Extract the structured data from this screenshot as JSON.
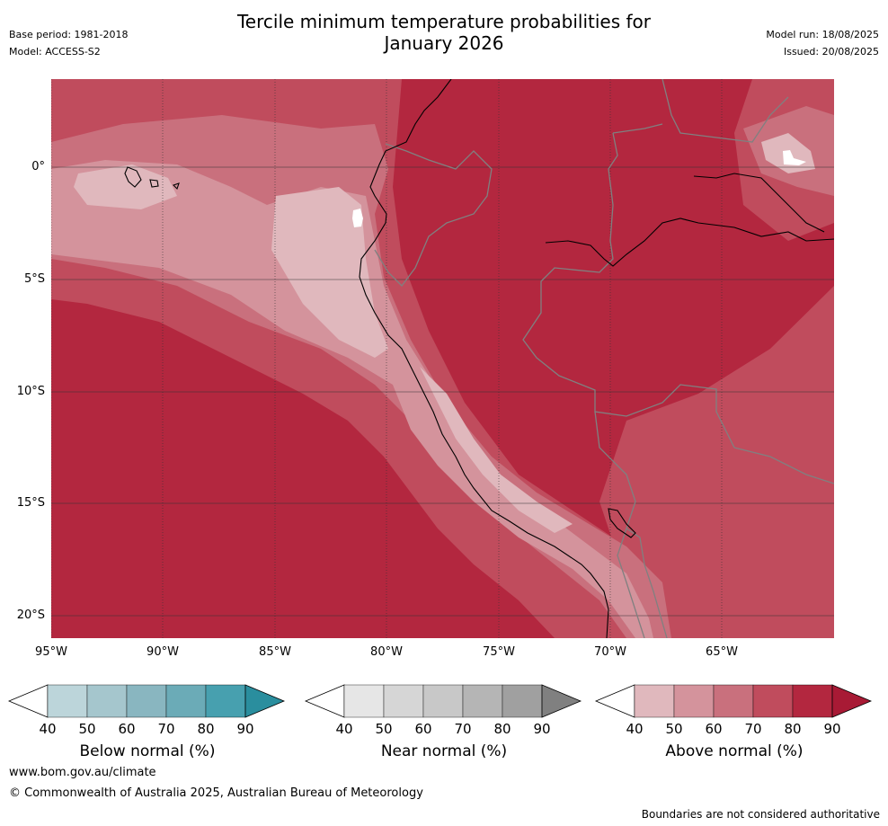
{
  "header": {
    "title_line1": "Tercile minimum temperature probabilities for",
    "title_line2": "January 2026",
    "base_period": "Base period: 1981-2018",
    "model": "Model: ACCESS-S2",
    "model_run": "Model run: 18/08/2025",
    "issued": "Issued: 20/08/2025"
  },
  "map": {
    "lat_labels": [
      "0°",
      "5°S",
      "10°S",
      "15°S",
      "20°S"
    ],
    "lon_labels": [
      "95°W",
      "90°W",
      "85°W",
      "80°W",
      "75°W",
      "70°W",
      "65°W"
    ],
    "colors": {
      "above_40": "#e0b8bd",
      "above_50": "#d4939c",
      "above_60": "#c9707d",
      "above_70": "#c04c5d",
      "above_80": "#b3273f",
      "above_90": "#a81a35",
      "coast": "#000000",
      "border": "#808080",
      "grid": "#333333"
    }
  },
  "legends": [
    {
      "title": "Below normal (%)",
      "ticks": [
        "40",
        "50",
        "60",
        "70",
        "80",
        "90"
      ],
      "colors": [
        "#ffffff",
        "#bcd5da",
        "#a5c6cd",
        "#89b6c0",
        "#6babb7",
        "#47a0af",
        "#2a8e9e"
      ]
    },
    {
      "title": "Near normal (%)",
      "ticks": [
        "40",
        "50",
        "60",
        "70",
        "80",
        "90"
      ],
      "colors": [
        "#ffffff",
        "#e6e6e6",
        "#d6d6d6",
        "#c8c8c8",
        "#b5b5b5",
        "#a0a0a0",
        "#808080"
      ]
    },
    {
      "title": "Above normal (%)",
      "ticks": [
        "40",
        "50",
        "60",
        "70",
        "80",
        "90"
      ],
      "colors": [
        "#ffffff",
        "#e0b8bd",
        "#d4939c",
        "#c9707d",
        "#c04c5d",
        "#b3273f",
        "#a81a35"
      ]
    }
  ],
  "footer": {
    "website": "www.bom.gov.au/climate",
    "copyright": "© Commonwealth of Australia 2025, Australian Bureau of Meteorology",
    "disclaimer": "Boundaries are not considered authoritative"
  }
}
